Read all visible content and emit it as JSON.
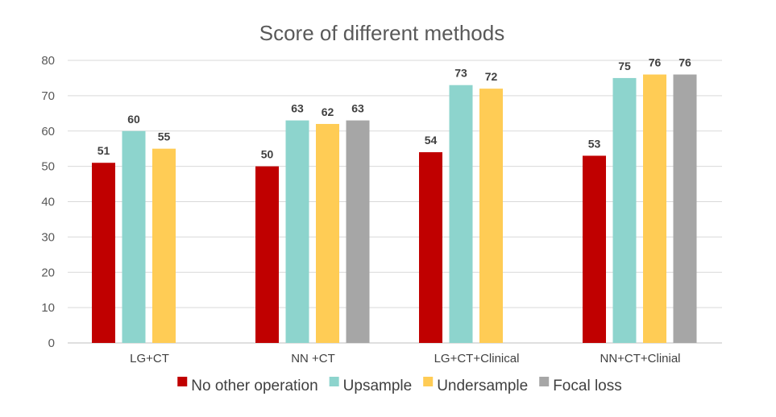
{
  "chart_data": {
    "type": "bar",
    "title": "Score of different methods",
    "categories": [
      "LG+CT",
      "NN +CT",
      "LG+CT+Clinical",
      "NN+CT+Clinial"
    ],
    "series": [
      {
        "name": "No other operation",
        "color": "#C00000",
        "values": [
          51,
          50,
          54,
          53
        ]
      },
      {
        "name": "Upsample",
        "color": "#8DD4CD",
        "values": [
          60,
          63,
          73,
          75
        ]
      },
      {
        "name": "Undersample",
        "color": "#FFCC55",
        "values": [
          55,
          62,
          72,
          76
        ]
      },
      {
        "name": "Focal loss",
        "color": "#A6A6A6",
        "values": [
          null,
          63,
          null,
          76
        ]
      }
    ],
    "ylim": [
      0,
      80
    ],
    "yticks": [
      0,
      10,
      20,
      30,
      40,
      50,
      60,
      70,
      80
    ],
    "grid": true,
    "legend": "bottom"
  }
}
